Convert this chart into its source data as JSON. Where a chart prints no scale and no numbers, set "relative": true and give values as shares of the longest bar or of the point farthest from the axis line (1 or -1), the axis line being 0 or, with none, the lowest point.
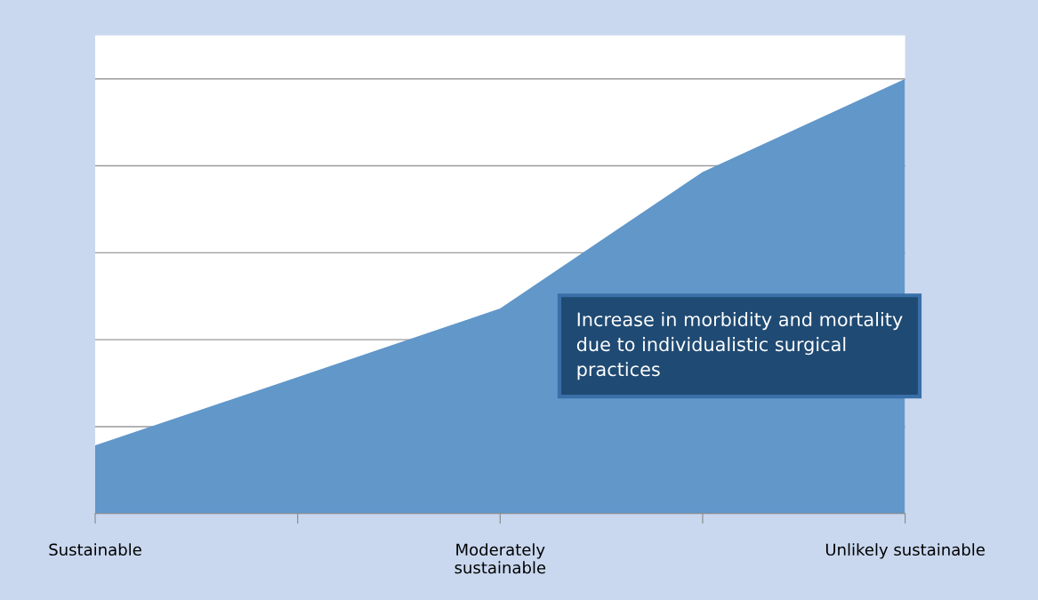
{
  "chart_data": {
    "type": "area",
    "relative": true,
    "categories": [
      "Sustainable",
      null,
      "Moderately\nsustainable",
      null,
      "Unlikely sustainable"
    ],
    "series": [
      {
        "color": "#6197c9",
        "values": [
          0.157,
          0.314,
          0.472,
          0.786,
          1
        ]
      }
    ],
    "annotations": [
      "Increase in morbidity and mortality due to individualistic surgical practices"
    ],
    "grid": "y"
  }
}
